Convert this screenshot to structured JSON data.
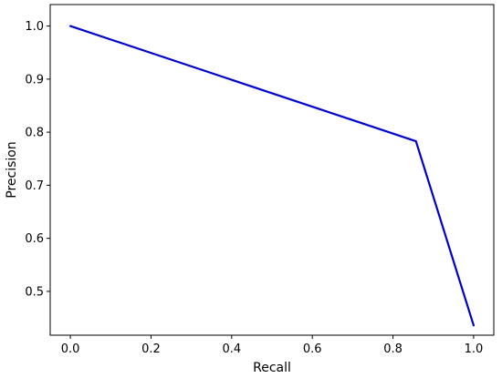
{
  "chart_data": {
    "type": "line",
    "title": "",
    "xlabel": "Recall",
    "ylabel": "Precision",
    "xlim": [
      -0.05,
      1.05
    ],
    "ylim": [
      0.4175,
      1.0405
    ],
    "grid": false,
    "legend": "none",
    "x_ticks": [
      0.0,
      0.2,
      0.4,
      0.6,
      0.8,
      1.0
    ],
    "x_tick_labels": [
      "0.0",
      "0.2",
      "0.4",
      "0.6",
      "0.8",
      "1.0"
    ],
    "y_ticks": [
      0.5,
      0.6,
      0.7,
      0.8,
      0.9,
      1.0
    ],
    "y_tick_labels": [
      "0.5",
      "0.6",
      "0.7",
      "0.8",
      "0.9",
      "1.0"
    ],
    "series": [
      {
        "x": [
          0.0,
          0.857,
          1.0
        ],
        "y": [
          1.0,
          0.783,
          0.436
        ],
        "color": "#0000cc"
      }
    ]
  }
}
